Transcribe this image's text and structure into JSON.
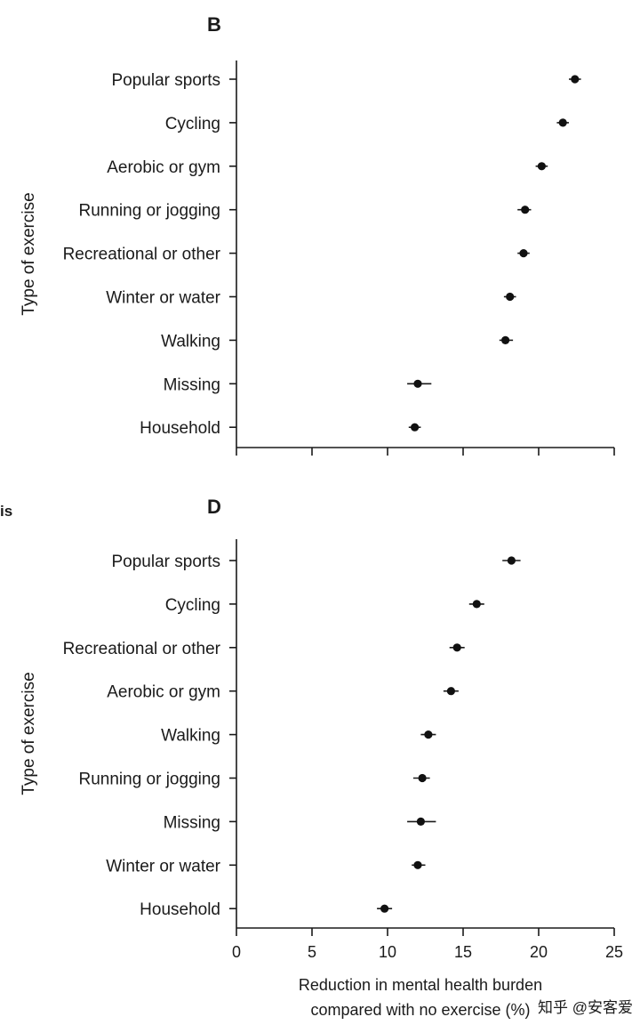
{
  "fragment_label": "is",
  "watermark": "知乎 @安客爱",
  "chart_data": [
    {
      "type": "scatter",
      "panel_label": "B",
      "title": "",
      "ylabel": "Type of exercise",
      "xlabel": "",
      "xlim": [
        0,
        25
      ],
      "xticks": [
        0,
        5,
        10,
        15,
        20,
        25
      ],
      "show_tick_labels": false,
      "grid": false,
      "categories": [
        "Popular sports",
        "Cycling",
        "Aerobic or gym",
        "Running or jogging",
        "Recreational or other",
        "Winter or water",
        "Walking",
        "Missing",
        "Household"
      ],
      "values": [
        22.4,
        21.6,
        20.2,
        19.1,
        19.0,
        18.1,
        17.8,
        12.0,
        11.8
      ],
      "ci_low": [
        22.0,
        21.2,
        19.8,
        18.6,
        18.6,
        17.7,
        17.4,
        11.3,
        11.4
      ],
      "ci_high": [
        22.8,
        22.0,
        20.6,
        19.5,
        19.4,
        18.5,
        18.3,
        12.9,
        12.2
      ]
    },
    {
      "type": "scatter",
      "panel_label": "D",
      "title": "",
      "ylabel": "Type of exercise",
      "xlabel": "Reduction in mental health burden compared with no exercise (%)",
      "xlabel_lines": [
        "Reduction in mental health burden",
        "compared with no exercise (%)"
      ],
      "xlim": [
        0,
        25
      ],
      "xticks": [
        0,
        5,
        10,
        15,
        20,
        25
      ],
      "show_tick_labels": true,
      "grid": false,
      "categories": [
        "Popular sports",
        "Cycling",
        "Recreational or other",
        "Aerobic or gym",
        "Walking",
        "Running or jogging",
        "Missing",
        "Winter or water",
        "Household"
      ],
      "values": [
        18.2,
        15.9,
        14.6,
        14.2,
        12.7,
        12.3,
        12.2,
        12.0,
        9.8
      ],
      "ci_low": [
        17.6,
        15.4,
        14.1,
        13.7,
        12.2,
        11.7,
        11.3,
        11.6,
        9.3
      ],
      "ci_high": [
        18.8,
        16.4,
        15.1,
        14.7,
        13.2,
        12.8,
        13.2,
        12.5,
        10.3
      ]
    }
  ]
}
